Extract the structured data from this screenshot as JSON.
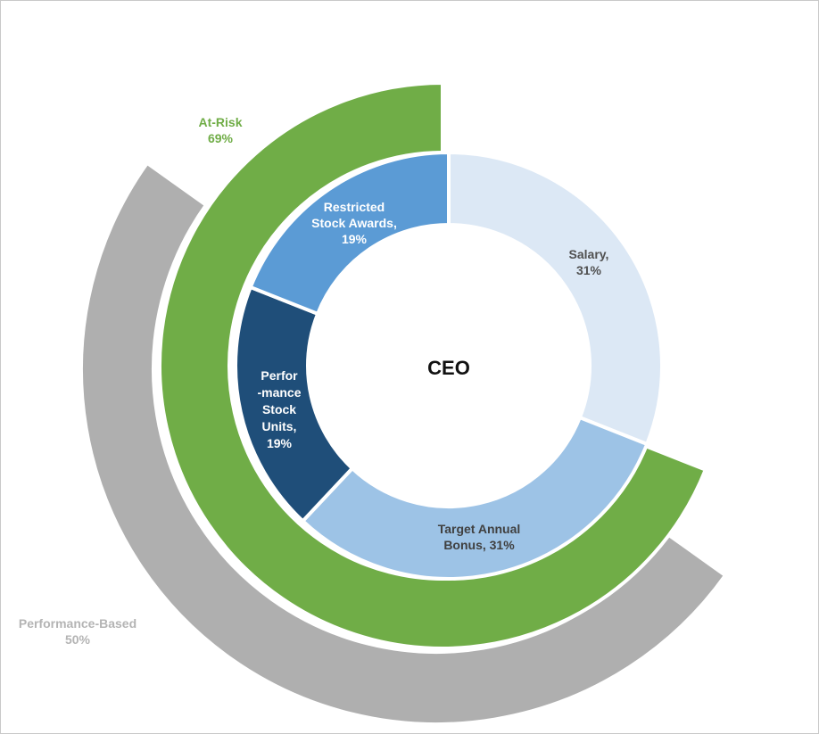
{
  "chart_data": {
    "type": "pie",
    "center_label": "CEO",
    "rings": [
      {
        "name": "inner",
        "slices": [
          {
            "label": [
              "Salary,",
              "31%"
            ],
            "value": 31,
            "color": "#dce8f5",
            "text_color": "#505050"
          },
          {
            "label": [
              "Target Annual",
              "Bonus, 31%"
            ],
            "value": 31,
            "color": "#9dc3e6",
            "text_color": "#404040"
          },
          {
            "label": [
              "Perfor",
              "-mance",
              "Stock",
              "Units,",
              "19%"
            ],
            "value": 19,
            "color": "#1f4e79",
            "text_color": "#ffffff"
          },
          {
            "label": [
              "Restricted",
              "Stock Awards,",
              "19%"
            ],
            "value": 19,
            "color": "#5b9bd5",
            "text_color": "#ffffff"
          }
        ]
      },
      {
        "name": "middle",
        "arc": {
          "label": [
            "At-Risk",
            "69%"
          ],
          "value": 69,
          "color": "#70ad47",
          "text_color": "#70ad47"
        }
      },
      {
        "name": "outer",
        "arc": {
          "label": [
            "Performance-Based",
            "50%"
          ],
          "value": 50,
          "color": "#afafaf",
          "text_color": "#b4b4b4"
        }
      }
    ]
  }
}
